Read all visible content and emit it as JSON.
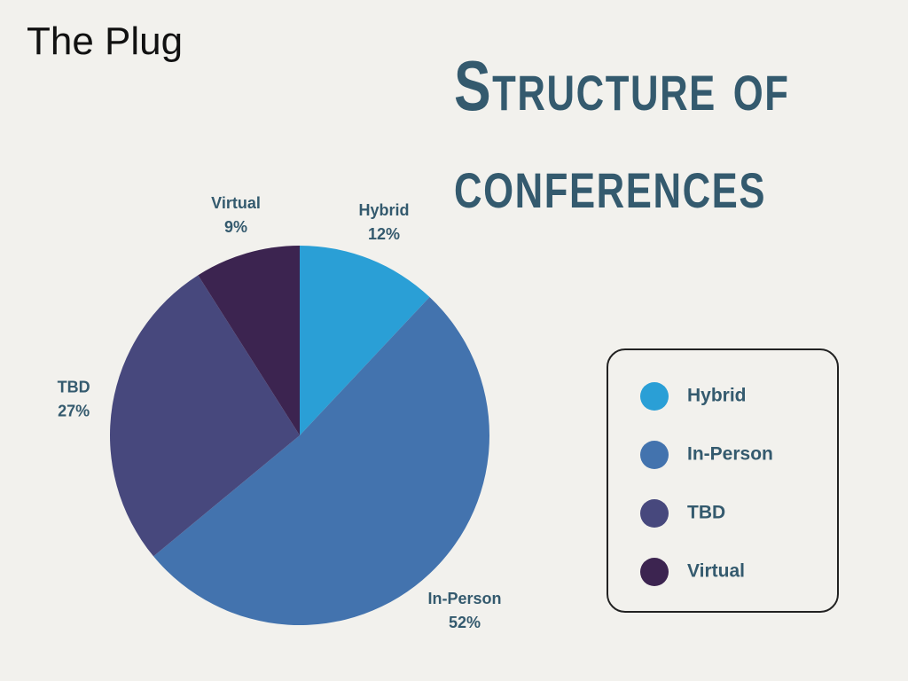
{
  "brand": "The Plug",
  "chart_data": {
    "type": "pie",
    "title": "Structure of conferences",
    "categories": [
      "Hybrid",
      "In-Person",
      "TBD",
      "Virtual"
    ],
    "values": [
      12,
      52,
      27,
      9
    ],
    "value_labels": [
      "12%",
      "52%",
      "27%",
      "9%"
    ],
    "colors": [
      "#2a9fd6",
      "#4373ae",
      "#47487d",
      "#3c2450"
    ],
    "legend": "right"
  }
}
